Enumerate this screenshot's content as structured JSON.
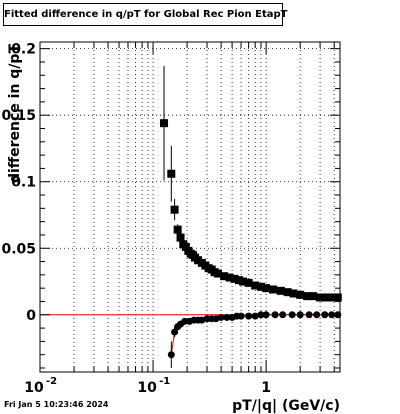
{
  "chart_data": {
    "type": "scatter",
    "title": "Fitted difference in q/pT for Global Rec Pion EtapT",
    "xlabel": "pT/|q| (GeV/c)",
    "ylabel": "difference in q/pT",
    "x_scale": "log",
    "xlim": [
      0.01,
      4.5
    ],
    "ylim": [
      -0.043,
      0.205
    ],
    "x_major_tick_labels": [
      "10",
      "10",
      "1"
    ],
    "x_tick_exponents": [
      "-2",
      "-1",
      ""
    ],
    "y_tick_labels": [
      "0",
      "0.05",
      "0.1",
      "0.15",
      "0.2"
    ],
    "y_ticks": [
      0,
      0.05,
      0.1,
      0.15,
      0.2
    ],
    "grid": true,
    "reference_line": {
      "y": 0,
      "color": "#ff0000"
    },
    "series": [
      {
        "marker": "square",
        "color": "#000000",
        "points": [
          {
            "x": 0.125,
            "y": 0.144,
            "err": 0.043
          },
          {
            "x": 0.145,
            "y": 0.106,
            "err": 0.021
          },
          {
            "x": 0.155,
            "y": 0.079,
            "err": 0.008
          },
          {
            "x": 0.165,
            "y": 0.064,
            "err": 0.004
          },
          {
            "x": 0.175,
            "y": 0.058,
            "err": 0.003
          },
          {
            "x": 0.185,
            "y": 0.053,
            "err": 0.002
          },
          {
            "x": 0.195,
            "y": 0.051,
            "err": 0
          },
          {
            "x": 0.205,
            "y": 0.048,
            "err": 0
          },
          {
            "x": 0.215,
            "y": 0.046,
            "err": 0
          },
          {
            "x": 0.225,
            "y": 0.045,
            "err": 0
          },
          {
            "x": 0.235,
            "y": 0.043,
            "err": 0
          },
          {
            "x": 0.25,
            "y": 0.041,
            "err": 0
          },
          {
            "x": 0.27,
            "y": 0.039,
            "err": 0
          },
          {
            "x": 0.29,
            "y": 0.037,
            "err": 0
          },
          {
            "x": 0.31,
            "y": 0.035,
            "err": 0
          },
          {
            "x": 0.33,
            "y": 0.034,
            "err": 0
          },
          {
            "x": 0.35,
            "y": 0.032,
            "err": 0
          },
          {
            "x": 0.375,
            "y": 0.031,
            "err": 0
          },
          {
            "x": 0.425,
            "y": 0.029,
            "err": 0
          },
          {
            "x": 0.475,
            "y": 0.028,
            "err": 0
          },
          {
            "x": 0.525,
            "y": 0.027,
            "err": 0
          },
          {
            "x": 0.575,
            "y": 0.026,
            "err": 0
          },
          {
            "x": 0.625,
            "y": 0.025,
            "err": 0
          },
          {
            "x": 0.7,
            "y": 0.024,
            "err": 0
          },
          {
            "x": 0.8,
            "y": 0.022,
            "err": 0
          },
          {
            "x": 0.9,
            "y": 0.021,
            "err": 0
          },
          {
            "x": 1.0,
            "y": 0.02,
            "err": 0
          },
          {
            "x": 1.15,
            "y": 0.019,
            "err": 0
          },
          {
            "x": 1.35,
            "y": 0.018,
            "err": 0
          },
          {
            "x": 1.55,
            "y": 0.017,
            "err": 0
          },
          {
            "x": 1.75,
            "y": 0.016,
            "err": 0
          },
          {
            "x": 2.0,
            "y": 0.015,
            "err": 0
          },
          {
            "x": 2.3,
            "y": 0.014,
            "err": 0
          },
          {
            "x": 2.6,
            "y": 0.014,
            "err": 0
          },
          {
            "x": 3.0,
            "y": 0.013,
            "err": 0
          },
          {
            "x": 3.4,
            "y": 0.013,
            "err": 0
          },
          {
            "x": 3.8,
            "y": 0.013,
            "err": 0
          },
          {
            "x": 4.3,
            "y": 0.013,
            "err": 0
          }
        ]
      },
      {
        "marker": "circle",
        "color": "#000000",
        "line_color": "#ff0000",
        "points": [
          {
            "x": 0.145,
            "y": -0.03,
            "err": 0.01
          },
          {
            "x": 0.155,
            "y": -0.013,
            "err": 0.004
          },
          {
            "x": 0.165,
            "y": -0.009,
            "err": 0.002
          },
          {
            "x": 0.175,
            "y": -0.007,
            "err": 0
          },
          {
            "x": 0.19,
            "y": -0.005,
            "err": 0
          },
          {
            "x": 0.21,
            "y": -0.005,
            "err": 0
          },
          {
            "x": 0.23,
            "y": -0.004,
            "err": 0
          },
          {
            "x": 0.25,
            "y": -0.004,
            "err": 0
          },
          {
            "x": 0.27,
            "y": -0.004,
            "err": 0
          },
          {
            "x": 0.3,
            "y": -0.003,
            "err": 0
          },
          {
            "x": 0.33,
            "y": -0.003,
            "err": 0
          },
          {
            "x": 0.36,
            "y": -0.003,
            "err": 0
          },
          {
            "x": 0.4,
            "y": -0.002,
            "err": 0
          },
          {
            "x": 0.45,
            "y": -0.002,
            "err": 0
          },
          {
            "x": 0.5,
            "y": -0.002,
            "err": 0
          },
          {
            "x": 0.55,
            "y": -0.001,
            "err": 0
          },
          {
            "x": 0.6,
            "y": -0.001,
            "err": 0
          },
          {
            "x": 0.7,
            "y": -0.001,
            "err": 0
          },
          {
            "x": 0.8,
            "y": -0.001,
            "err": 0
          },
          {
            "x": 0.9,
            "y": 0.0,
            "err": 0
          },
          {
            "x": 1.0,
            "y": 0.0,
            "err": 0
          },
          {
            "x": 1.2,
            "y": 0.0,
            "err": 0
          },
          {
            "x": 1.4,
            "y": 0.0,
            "err": 0
          },
          {
            "x": 1.7,
            "y": 0.0,
            "err": 0
          },
          {
            "x": 2.0,
            "y": 0.0,
            "err": 0
          },
          {
            "x": 2.4,
            "y": 0.0,
            "err": 0
          },
          {
            "x": 2.8,
            "y": 0.0,
            "err": 0
          },
          {
            "x": 3.3,
            "y": 0.0,
            "err": 0
          },
          {
            "x": 3.8,
            "y": 0.0,
            "err": 0
          },
          {
            "x": 4.3,
            "y": 0.0,
            "err": 0
          }
        ]
      }
    ]
  },
  "footer": {
    "timestamp": "Fri Jan  5 10:23:46 2024"
  }
}
